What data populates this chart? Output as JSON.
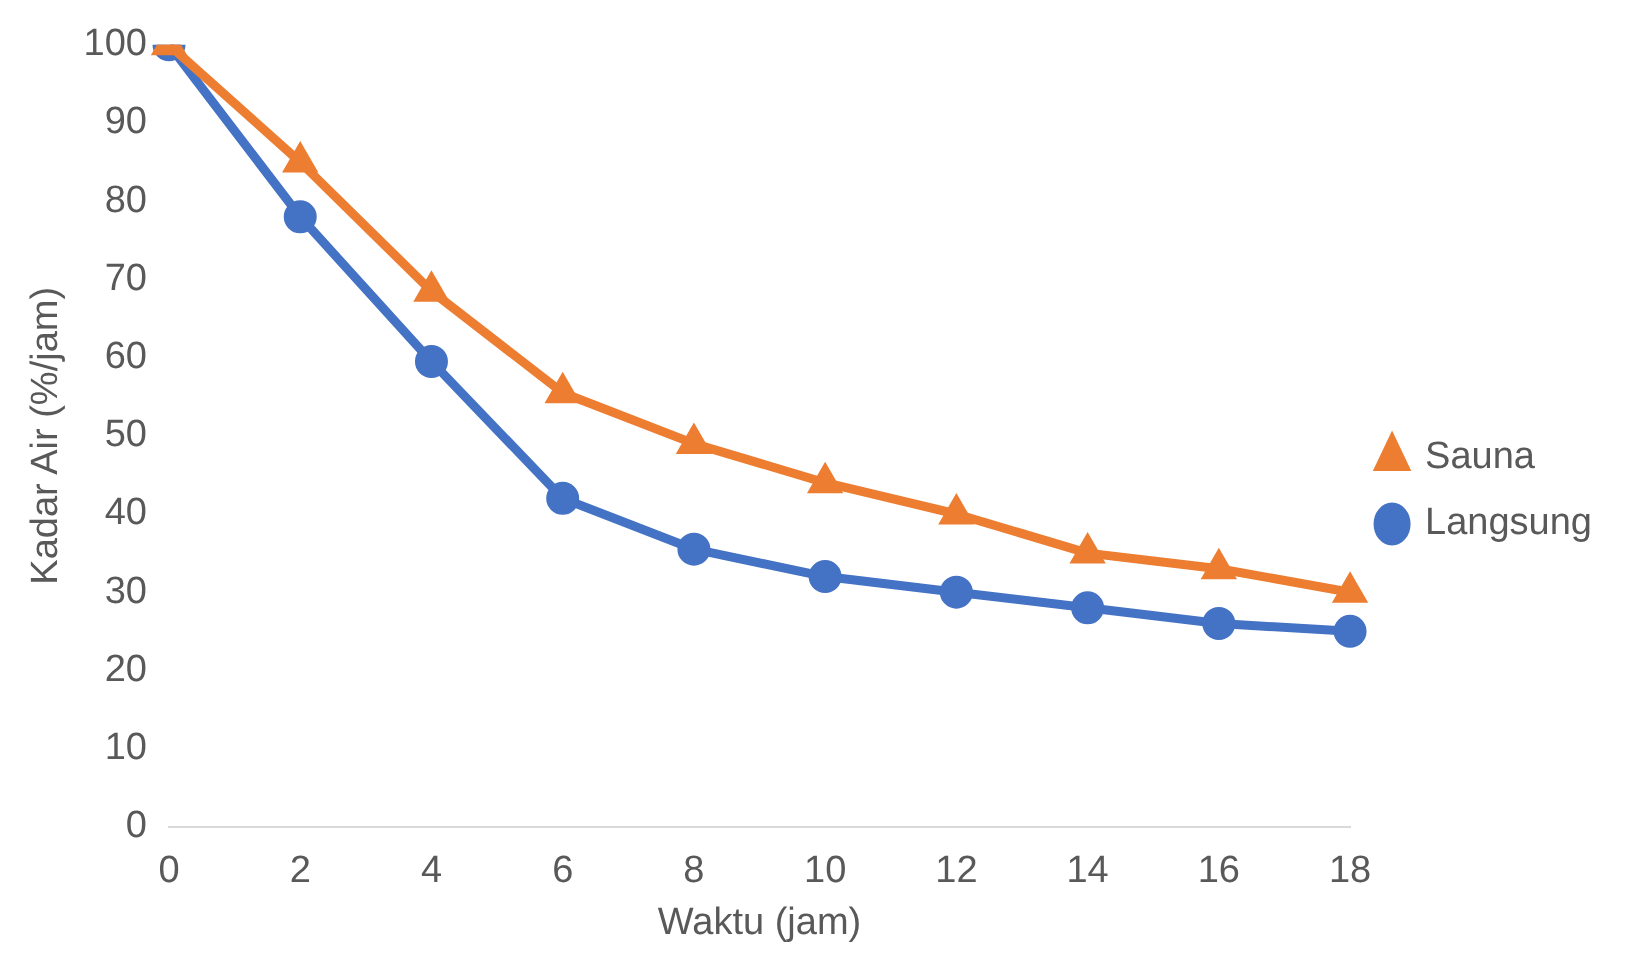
{
  "chart_data": {
    "type": "line",
    "xlabel": "Waktu (jam)",
    "ylabel": "Kadar Air (%/jam)",
    "categories": [
      "0",
      "2",
      "4",
      "6",
      "8",
      "10",
      "12",
      "14",
      "16",
      "18"
    ],
    "series": [
      {
        "name": "Langsung",
        "color": "#4472c4",
        "marker": "circle",
        "values": [
          100,
          78,
          59.5,
          42,
          35.5,
          32,
          30,
          28,
          26,
          25
        ]
      },
      {
        "name": "Sauna",
        "color": "#ed7d31",
        "marker": "triangle",
        "values": [
          100,
          85,
          68.5,
          55.5,
          49,
          44,
          40,
          35,
          33,
          30
        ]
      }
    ],
    "ylim": [
      0,
      100
    ],
    "yticks": [
      0,
      10,
      20,
      30,
      40,
      50,
      60,
      70,
      80,
      90,
      100
    ],
    "grid": false,
    "legend": "right"
  }
}
